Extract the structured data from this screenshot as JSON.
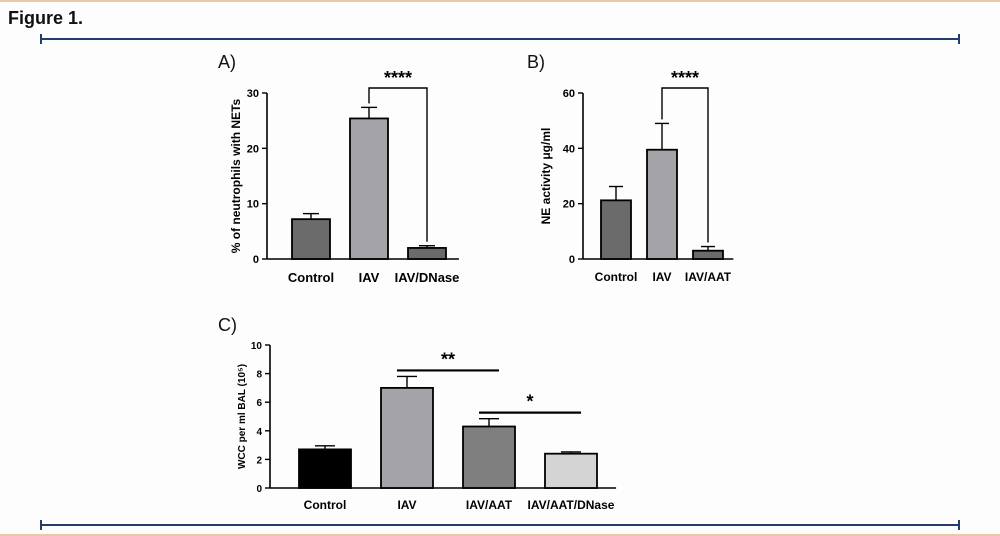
{
  "figure": {
    "title": "Figure 1."
  },
  "colors": {
    "dark_gray": "#6b6b6b",
    "light_gray": "#a3a3a8",
    "mid_gray": "#7f7f7f",
    "black": "#000000",
    "pale_gray": "#d4d4d4",
    "rule": "#243e6b"
  },
  "chart_data": [
    {
      "panel": "A)",
      "type": "bar",
      "categories": [
        "Control",
        "IAV",
        "IAV/DNase"
      ],
      "values": [
        7.2,
        25.4,
        2.0
      ],
      "errors": [
        1.0,
        2.0,
        0.4
      ],
      "colors": [
        "#6b6b6b",
        "#a3a3a8",
        "#6b6b6b"
      ],
      "ylabel": "% of neutrophils with NETs",
      "ylim": [
        0,
        30
      ],
      "yticks": [
        "0",
        "10",
        "20",
        "30"
      ],
      "significance": [
        {
          "from": 1,
          "to": 2,
          "label": "****",
          "style": "bracket"
        }
      ]
    },
    {
      "panel": "B)",
      "type": "bar",
      "categories": [
        "Control",
        "IAV",
        "IAV/AAT"
      ],
      "values": [
        21.2,
        39.5,
        3.0
      ],
      "errors": [
        5.0,
        9.5,
        1.5
      ],
      "colors": [
        "#6b6b6b",
        "#a3a3a8",
        "#6b6b6b"
      ],
      "ylabel": "NE activity μg/ml",
      "ylim": [
        0,
        60
      ],
      "yticks": [
        "0",
        "20",
        "40",
        "60"
      ],
      "significance": [
        {
          "from": 1,
          "to": 2,
          "label": "****",
          "style": "bracket"
        }
      ]
    },
    {
      "panel": "C)",
      "type": "bar",
      "categories": [
        "Control",
        "IAV",
        "IAV/AAT",
        "IAV/AAT/DNase"
      ],
      "values": [
        2.7,
        7.0,
        4.3,
        2.4
      ],
      "errors": [
        0.25,
        0.8,
        0.55,
        0.12
      ],
      "colors": [
        "#000000",
        "#a3a3a8",
        "#7f7f7f",
        "#d4d4d4"
      ],
      "ylabel": "WCC per ml BAL (10⁵)",
      "ylim": [
        0,
        10
      ],
      "yticks": [
        "0",
        "2",
        "4",
        "6",
        "8",
        "10"
      ],
      "significance": [
        {
          "from": 1,
          "to": 2,
          "label": "**",
          "style": "line"
        },
        {
          "from": 2,
          "to": 3,
          "label": "*",
          "style": "line"
        }
      ]
    }
  ]
}
